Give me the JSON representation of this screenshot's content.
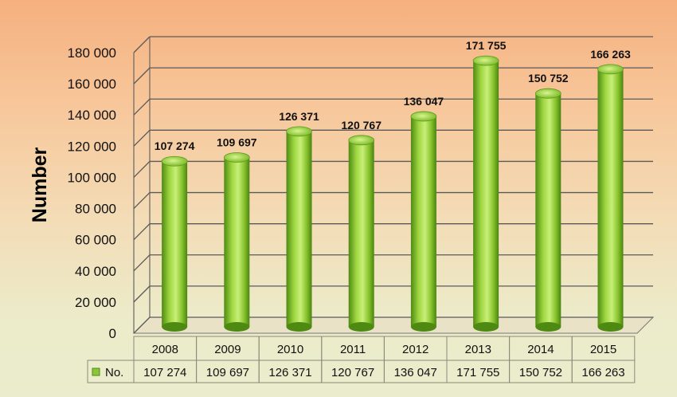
{
  "chart_data": {
    "type": "bar",
    "categories": [
      "2008",
      "2009",
      "2010",
      "2011",
      "2012",
      "2013",
      "2014",
      "2015"
    ],
    "values": [
      107274,
      109697,
      126371,
      120767,
      136047,
      171755,
      150752,
      166263
    ],
    "data_labels": [
      "107 274",
      "109 697",
      "126 371",
      "120 767",
      "136 047",
      "171 755",
      "150 752",
      "166 263"
    ],
    "ylabel": "Number",
    "ylim": [
      0,
      180000
    ],
    "y_ticks": [
      0,
      20000,
      40000,
      60000,
      80000,
      100000,
      120000,
      140000,
      160000,
      180000
    ],
    "y_tick_labels": [
      "0",
      "20 000",
      "40 000",
      "60 000",
      "80 000",
      "100 000",
      "120 000",
      "140 000",
      "160 000",
      "180 000"
    ],
    "grid": true,
    "legend_placement": "data-table",
    "series": [
      {
        "name": "No.",
        "values": [
          107274,
          109697,
          126371,
          120767,
          136047,
          171755,
          150752,
          166263
        ]
      }
    ],
    "colors": {
      "bar": "#7fbf2a",
      "bar_dark": "#4e8a12",
      "bar_light": "#c8ef78",
      "grid": "#5a5a5a"
    }
  }
}
